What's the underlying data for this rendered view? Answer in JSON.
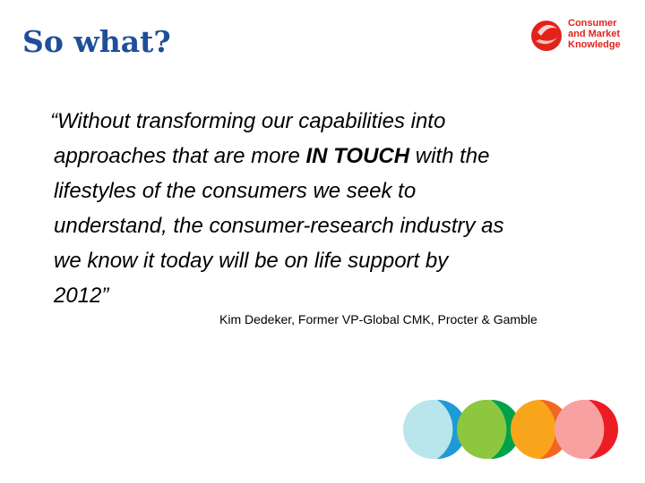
{
  "header": {
    "title": "So what?",
    "logo": [
      "Consumer",
      "and Market",
      "Knowledge"
    ]
  },
  "quote": {
    "lines": [
      [
        {
          "text": "“Without transforming our capabilities into"
        }
      ],
      [
        {
          "text": "approaches that are more "
        },
        {
          "text": "IN TOUCH",
          "bold": true
        },
        {
          "text": " with the"
        }
      ],
      [
        {
          "text": "lifestyles of the consumers we seek to"
        }
      ],
      [
        {
          "text": "understand, the consumer-research industry as"
        }
      ],
      [
        {
          "text": "we know it today will be on life support by"
        }
      ],
      [
        {
          "text": "2012”"
        }
      ]
    ],
    "attribution": "Kim Dedeker, Former VP-Global CMK, Procter & Gamble"
  }
}
